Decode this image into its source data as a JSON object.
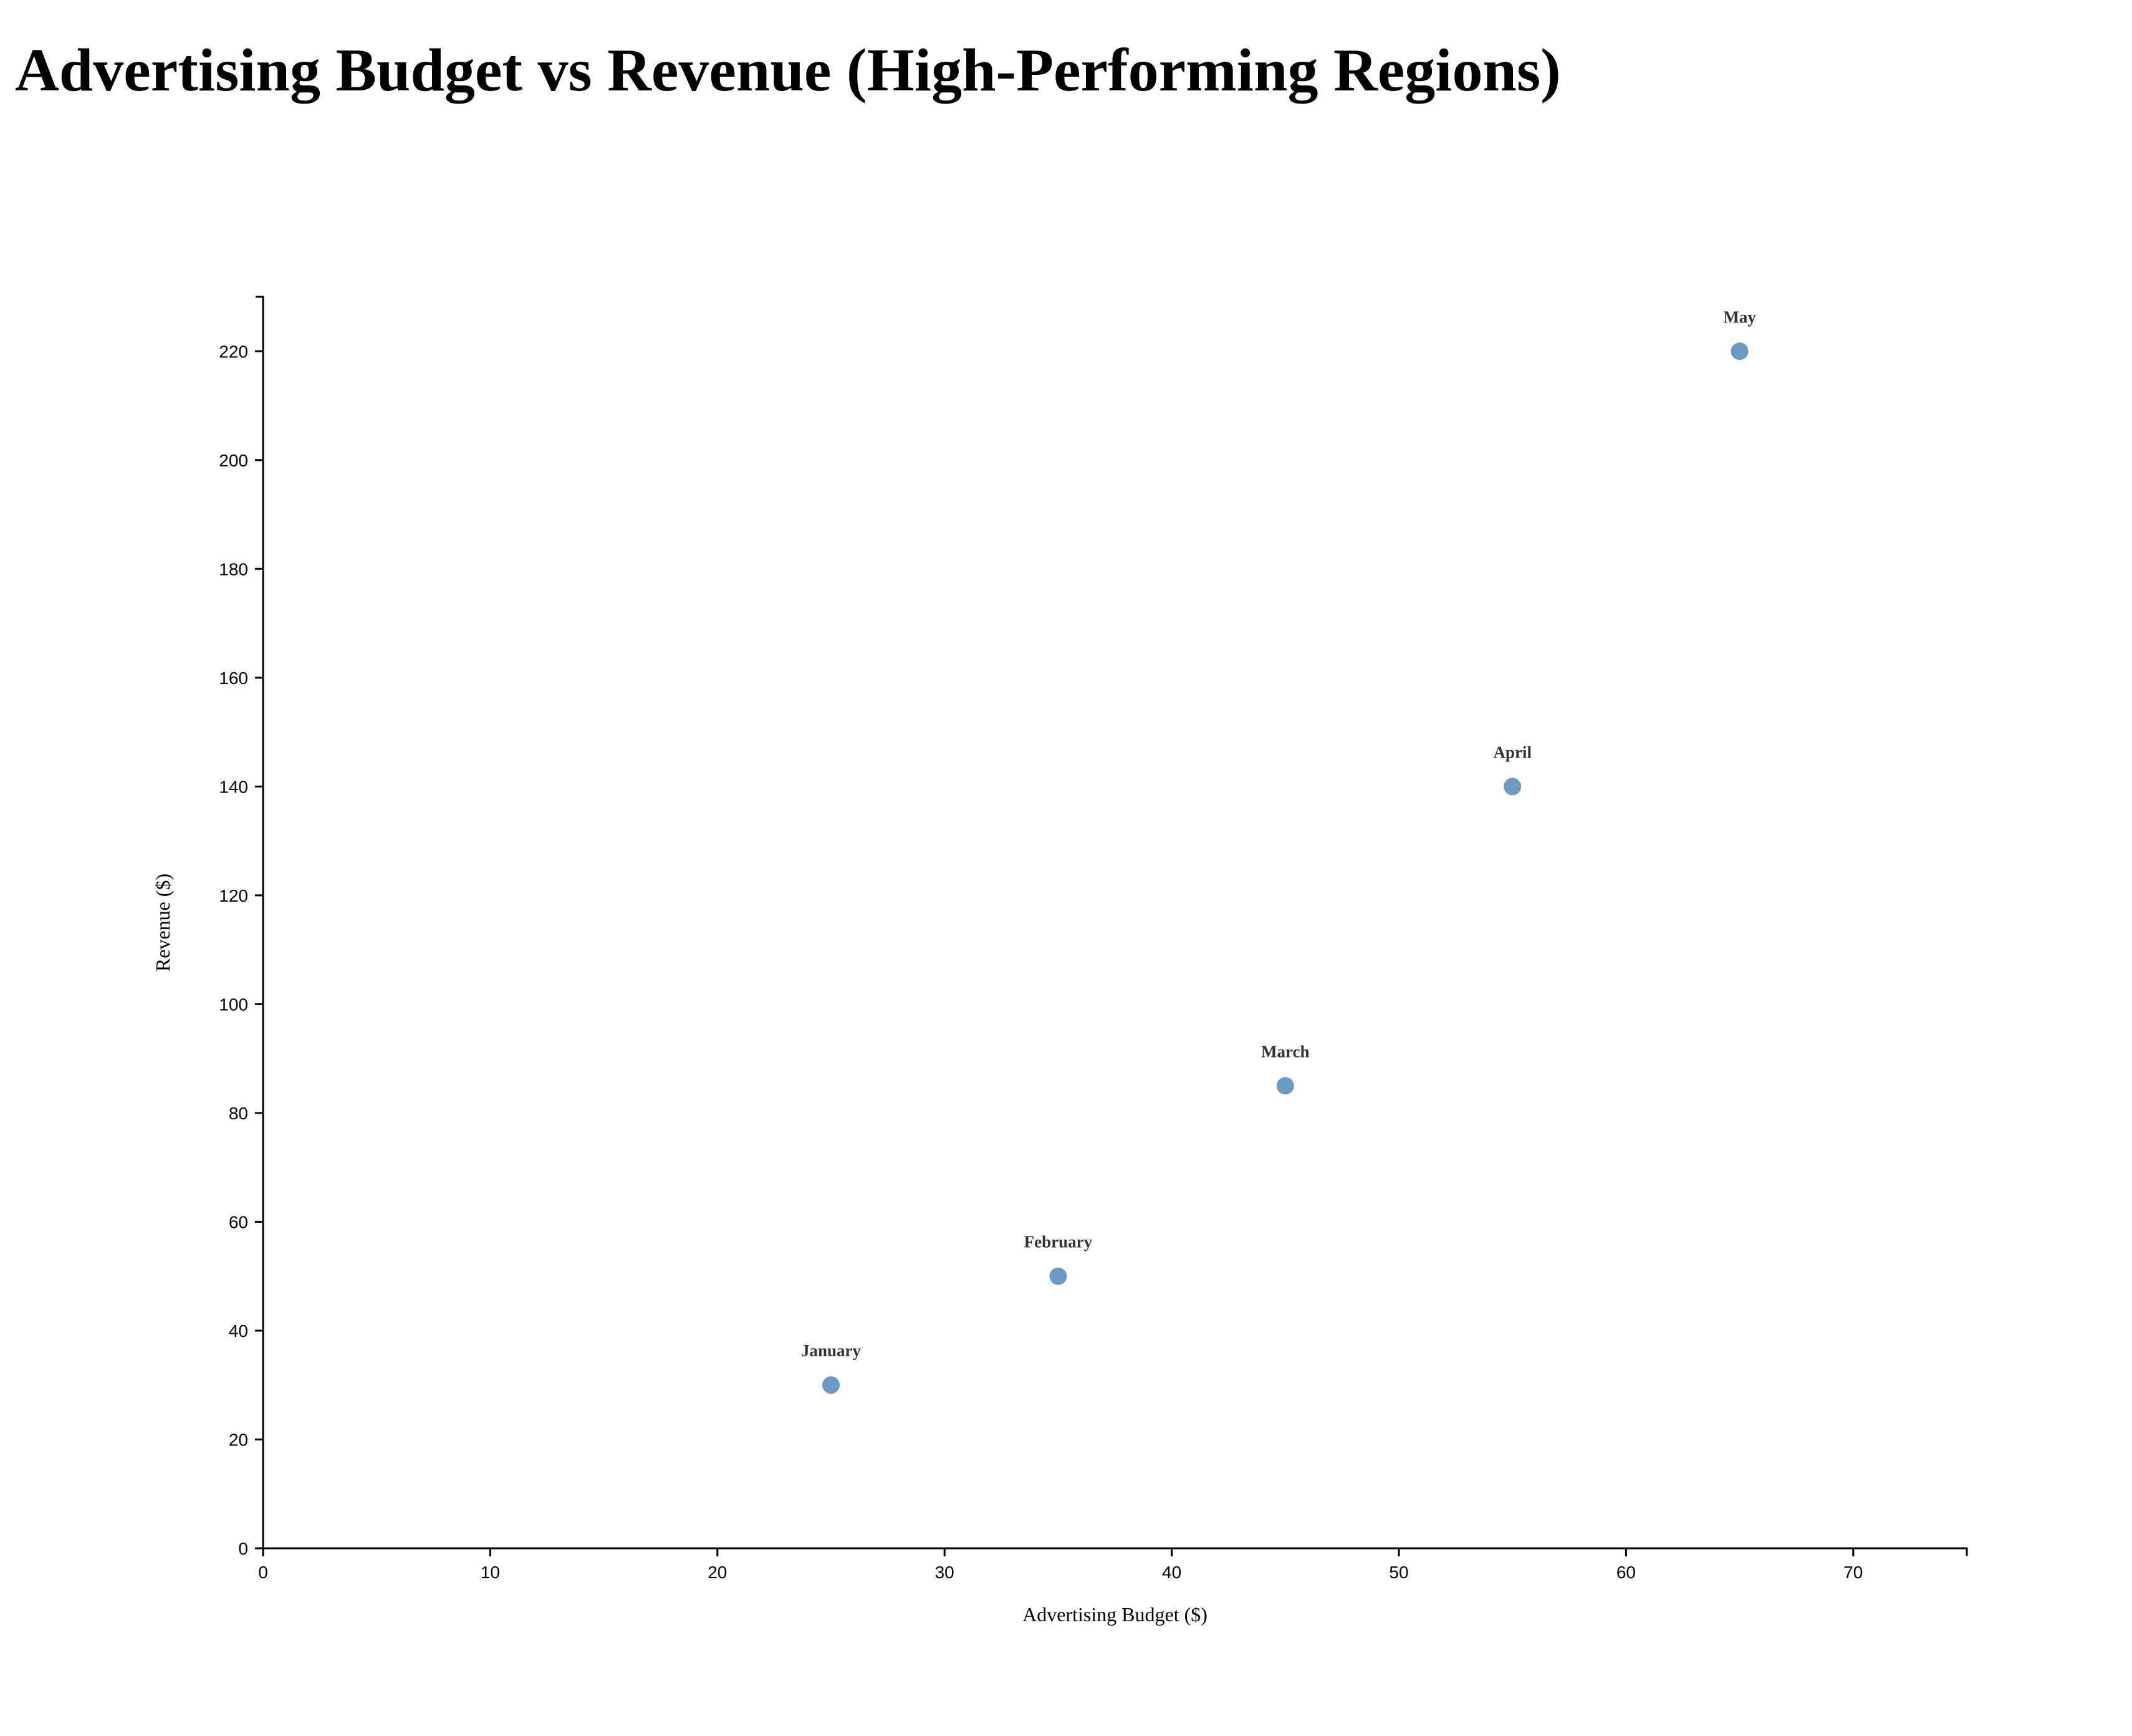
{
  "title": "Advertising Budget vs Revenue (High-Performing Regions)",
  "chart_data": {
    "type": "scatter",
    "title": "Advertising Budget vs Revenue (High-Performing Regions)",
    "xlabel": "Advertising Budget ($)",
    "ylabel": "Revenue ($)",
    "xlim": [
      0,
      75
    ],
    "ylim": [
      0,
      230
    ],
    "x_ticks": [
      0,
      10,
      20,
      30,
      40,
      50,
      60,
      70
    ],
    "y_ticks": [
      0,
      20,
      40,
      60,
      80,
      100,
      120,
      140,
      160,
      180,
      200,
      220
    ],
    "grid": false,
    "legend": "none",
    "point_color": "#6b9ac4",
    "points": [
      {
        "label": "January",
        "x": 25,
        "y": 30
      },
      {
        "label": "February",
        "x": 35,
        "y": 50
      },
      {
        "label": "March",
        "x": 45,
        "y": 85
      },
      {
        "label": "April",
        "x": 55,
        "y": 140
      },
      {
        "label": "May",
        "x": 65,
        "y": 220
      }
    ]
  }
}
